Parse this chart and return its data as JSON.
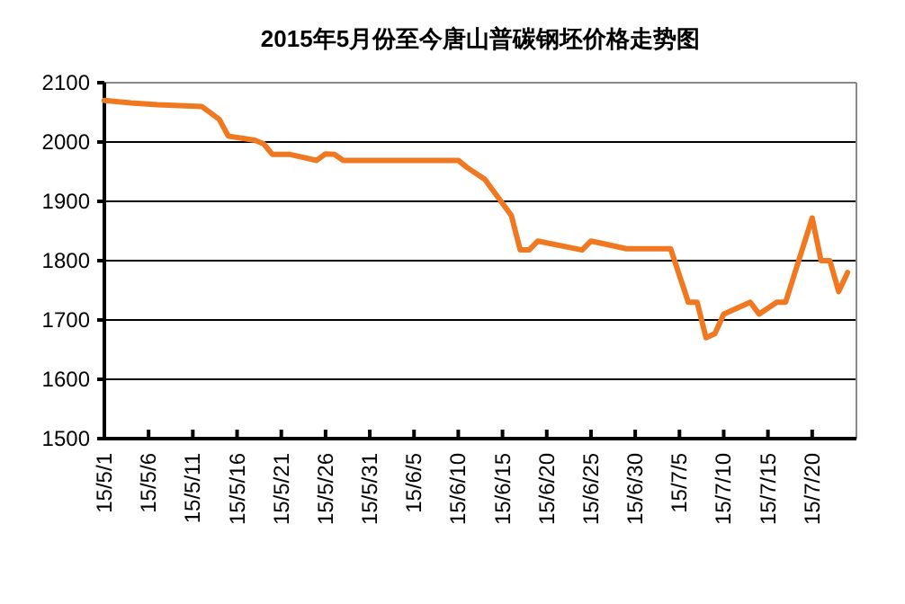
{
  "chart_data": {
    "type": "line",
    "title": "2015年5月份至今唐山普碳钢坯价格走势图",
    "x": [
      "2015-05-01",
      "2015-05-04",
      "2015-05-07",
      "2015-05-12",
      "2015-05-14",
      "2015-05-15",
      "2015-05-18",
      "2015-05-19",
      "2015-05-20",
      "2015-05-22",
      "2015-05-25",
      "2015-05-26",
      "2015-05-27",
      "2015-05-28",
      "2015-06-10",
      "2015-06-11",
      "2015-06-13",
      "2015-06-16",
      "2015-06-17",
      "2015-06-18",
      "2015-06-19",
      "2015-06-24",
      "2015-06-25",
      "2015-06-26",
      "2015-06-29",
      "2015-07-04",
      "2015-07-06",
      "2015-07-07",
      "2015-07-08",
      "2015-07-09",
      "2015-07-10",
      "2015-07-13",
      "2015-07-14",
      "2015-07-16",
      "2015-07-17",
      "2015-07-20",
      "2015-07-21",
      "2015-07-22",
      "2015-07-23",
      "2015-07-24"
    ],
    "series": [
      {
        "color": "#f07820",
        "values": [
          2070,
          2066,
          2063,
          2060,
          2038,
          2010,
          2003,
          1997,
          1979,
          1979,
          1969,
          1980,
          1979,
          1969,
          1969,
          1957,
          1937,
          1876,
          1818,
          1818,
          1833,
          1818,
          1833,
          1830,
          1820,
          1820,
          1730,
          1730,
          1670,
          1677,
          1710,
          1730,
          1710,
          1730,
          1730,
          1872,
          1800,
          1800,
          1748,
          1780
        ]
      }
    ],
    "xlim": [
      "2015-05-01",
      "2015-07-25"
    ],
    "xticks": [
      {
        "value": "2015-05-01",
        "label": "15/5/1"
      },
      {
        "value": "2015-05-06",
        "label": "15/5/6"
      },
      {
        "value": "2015-05-11",
        "label": "15/5/11"
      },
      {
        "value": "2015-05-16",
        "label": "15/5/16"
      },
      {
        "value": "2015-05-21",
        "label": "15/5/21"
      },
      {
        "value": "2015-05-26",
        "label": "15/5/26"
      },
      {
        "value": "2015-05-31",
        "label": "15/5/31"
      },
      {
        "value": "2015-06-05",
        "label": "15/6/5"
      },
      {
        "value": "2015-06-10",
        "label": "15/6/10"
      },
      {
        "value": "2015-06-15",
        "label": "15/6/15"
      },
      {
        "value": "2015-06-20",
        "label": "15/6/20"
      },
      {
        "value": "2015-06-25",
        "label": "15/6/25"
      },
      {
        "value": "2015-06-30",
        "label": "15/6/30"
      },
      {
        "value": "2015-07-05",
        "label": "15/7/5"
      },
      {
        "value": "2015-07-10",
        "label": "15/7/10"
      },
      {
        "value": "2015-07-15",
        "label": "15/7/15"
      },
      {
        "value": "2015-07-20",
        "label": "15/7/20"
      }
    ],
    "ylim": [
      1500,
      2100
    ],
    "yticks": [
      1500,
      1600,
      1700,
      1800,
      1900,
      2000,
      2100
    ],
    "grid": "y",
    "marker": "none",
    "line_style": "solid"
  }
}
